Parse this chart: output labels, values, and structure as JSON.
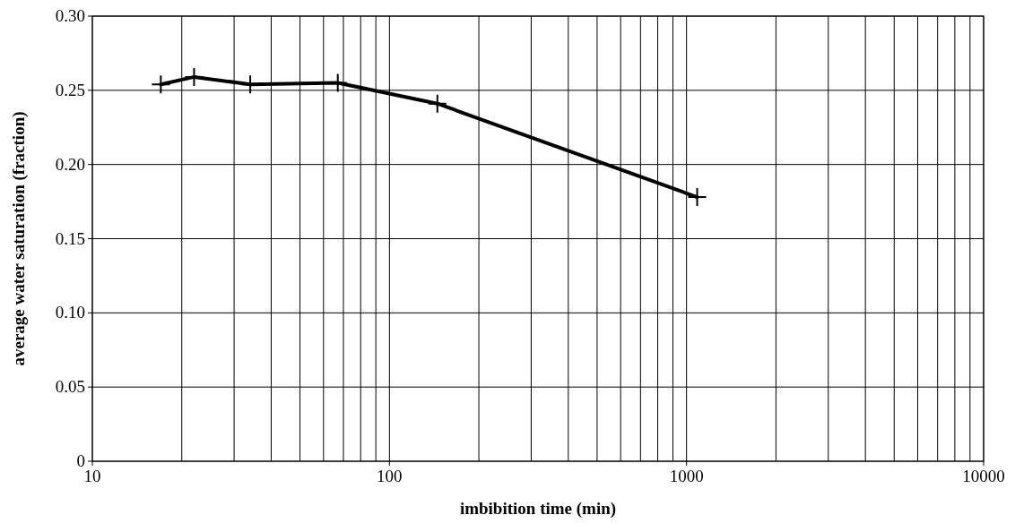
{
  "chart_data": {
    "type": "line",
    "xlabel": "imbibition time (min)",
    "ylabel": "average water saturation (fraction)",
    "x": [
      17,
      22,
      34,
      67,
      145,
      1086
    ],
    "series": [
      {
        "color": "#000000",
        "values": [
          0.254,
          0.259,
          0.254,
          0.255,
          0.241,
          0.178
        ]
      }
    ],
    "log": "x",
    "xlim": [
      10,
      10000
    ],
    "ylim": [
      0,
      0.3
    ],
    "xticks": [
      10,
      {
        "value": 20,
        "label": null
      },
      {
        "value": 30,
        "label": null
      },
      {
        "value": 40,
        "label": null
      },
      {
        "value": 50,
        "label": null
      },
      {
        "value": 60,
        "label": null
      },
      {
        "value": 70,
        "label": null
      },
      {
        "value": 80,
        "label": null
      },
      {
        "value": 90,
        "label": null
      },
      100,
      {
        "value": 200,
        "label": null
      },
      {
        "value": 300,
        "label": null
      },
      {
        "value": 400,
        "label": null
      },
      {
        "value": 500,
        "label": null
      },
      {
        "value": 600,
        "label": null
      },
      {
        "value": 700,
        "label": null
      },
      {
        "value": 800,
        "label": null
      },
      {
        "value": 900,
        "label": null
      },
      1000,
      {
        "value": 2000,
        "label": null
      },
      {
        "value": 3000,
        "label": null
      },
      {
        "value": 4000,
        "label": null
      },
      {
        "value": 5000,
        "label": null
      },
      {
        "value": 6000,
        "label": null
      },
      {
        "value": 7000,
        "label": null
      },
      {
        "value": 8000,
        "label": null
      },
      {
        "value": 9000,
        "label": null
      },
      10000
    ],
    "yticks": [
      {
        "value": 0,
        "label": "0"
      },
      {
        "value": 0.05,
        "label": "0.05"
      },
      {
        "value": 0.1,
        "label": "0.10"
      },
      {
        "value": 0.15,
        "label": "0.15"
      },
      {
        "value": 0.2,
        "label": "0.20"
      },
      {
        "value": 0.25,
        "label": "0.25"
      },
      {
        "value": 0.3,
        "label": "0.30"
      }
    ],
    "grid": true,
    "marker": "cross",
    "line_style": "solid"
  }
}
